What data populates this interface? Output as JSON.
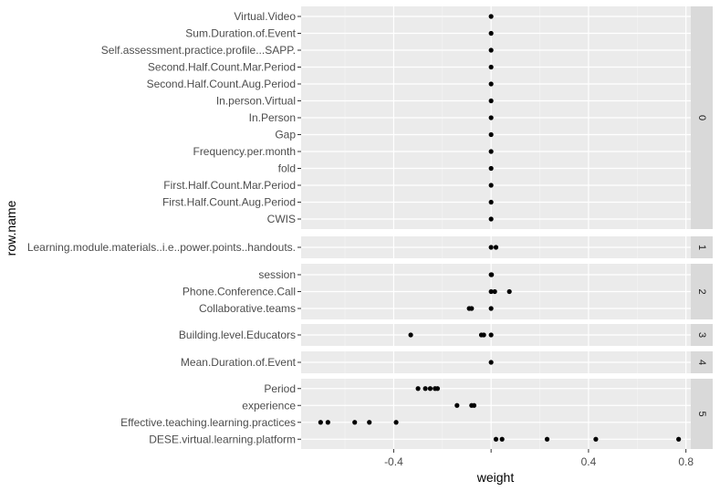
{
  "chart_data": {
    "type": "scatter",
    "xlabel": "weight",
    "ylabel": "row.name",
    "xlim": [
      -0.78,
      0.82
    ],
    "x_ticks": [
      -0.4,
      0.0,
      0.4,
      0.8
    ],
    "x_tick_labels": [
      "-0.4",
      "",
      "0.4",
      "0.8"
    ],
    "grid": true,
    "facet_direction": "rows",
    "panels": [
      {
        "facet": "0",
        "rows": [
          {
            "label": "Virtual.Video",
            "points": [
              0.0
            ]
          },
          {
            "label": "Sum.Duration.of.Event",
            "points": [
              0.0
            ]
          },
          {
            "label": "Self.assessment.practice.profile...SAPP.",
            "points": [
              0.0
            ]
          },
          {
            "label": "Second.Half.Count.Mar.Period",
            "points": [
              0.0
            ]
          },
          {
            "label": "Second.Half.Count.Aug.Period",
            "points": [
              0.0
            ]
          },
          {
            "label": "In.person.Virtual",
            "points": [
              0.0
            ]
          },
          {
            "label": "In.Person",
            "points": [
              0.0
            ]
          },
          {
            "label": "Gap",
            "points": [
              0.0
            ]
          },
          {
            "label": "Frequency.per.month",
            "points": [
              0.0
            ]
          },
          {
            "label": "fold",
            "points": [
              0.0
            ]
          },
          {
            "label": "First.Half.Count.Mar.Period",
            "points": [
              0.0
            ]
          },
          {
            "label": "First.Half.Count.Aug.Period",
            "points": [
              0.0
            ]
          },
          {
            "label": "CWIS",
            "points": [
              0.0
            ]
          }
        ]
      },
      {
        "facet": "1",
        "rows": [
          {
            "label": "Learning.module.materials..i.e..power.points..handouts.",
            "points": [
              0.0,
              0.02
            ]
          }
        ]
      },
      {
        "facet": "2",
        "rows": [
          {
            "label": "session",
            "points": [
              0.0,
              0.002
            ]
          },
          {
            "label": "Phone.Conference.Call",
            "points": [
              0.0,
              0.015,
              0.075
            ]
          },
          {
            "label": "Collaborative.teams",
            "points": [
              -0.09,
              -0.08,
              0.0
            ]
          }
        ]
      },
      {
        "facet": "3",
        "rows": [
          {
            "label": "Building.level.Educators",
            "points": [
              -0.33,
              -0.04,
              -0.03,
              0.0
            ]
          }
        ]
      },
      {
        "facet": "4",
        "rows": [
          {
            "label": "Mean.Duration.of.Event",
            "points": [
              0.0
            ]
          }
        ]
      },
      {
        "facet": "5",
        "rows": [
          {
            "label": "Period",
            "points": [
              -0.3,
              -0.27,
              -0.25,
              -0.23,
              -0.22
            ]
          },
          {
            "label": "experience",
            "points": [
              -0.14,
              -0.08,
              -0.07
            ]
          },
          {
            "label": "Effective.teaching.learning.practices",
            "points": [
              -0.7,
              -0.67,
              -0.56,
              -0.5,
              -0.39
            ]
          },
          {
            "label": "DESE.virtual.learning.platform",
            "points": [
              0.02,
              0.045,
              0.23,
              0.43,
              0.77
            ]
          }
        ]
      }
    ]
  }
}
